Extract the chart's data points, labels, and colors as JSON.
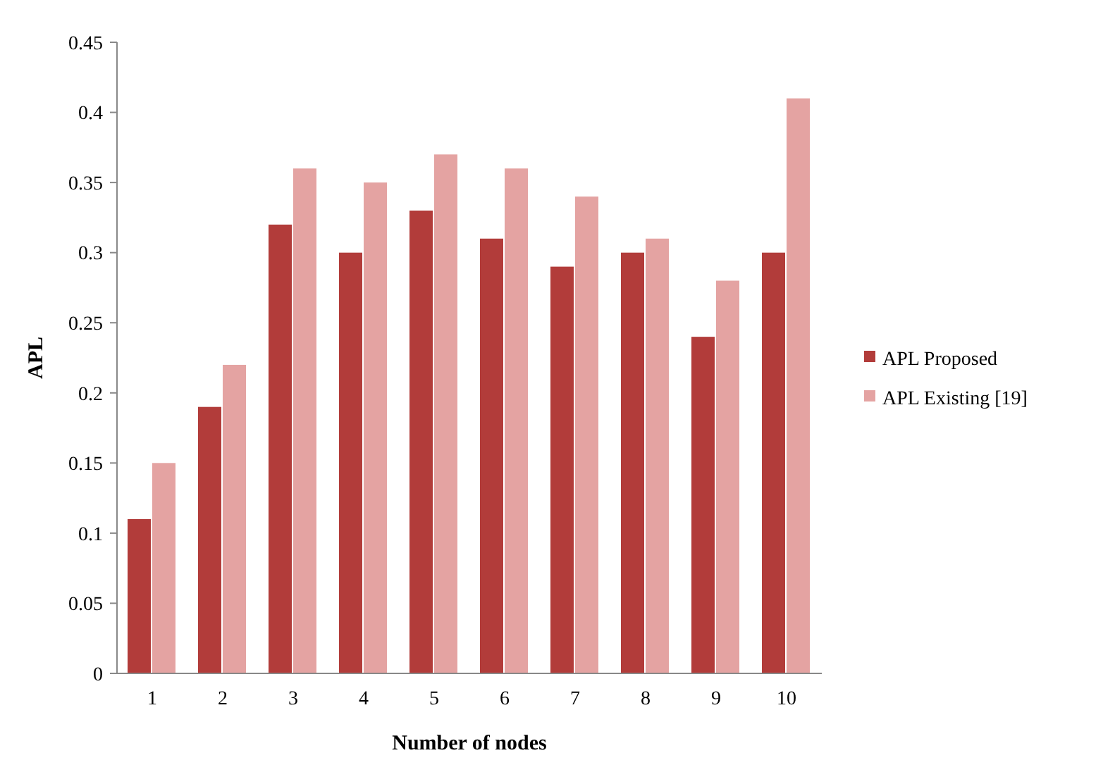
{
  "chart_data": {
    "type": "bar",
    "xlabel": "Number of nodes",
    "ylabel": "APL",
    "categories": [
      "1",
      "2",
      "3",
      "4",
      "5",
      "6",
      "7",
      "8",
      "9",
      "10"
    ],
    "series": [
      {
        "name": "APL Proposed",
        "color": "#b23c3a",
        "values": [
          0.11,
          0.19,
          0.32,
          0.3,
          0.33,
          0.31,
          0.29,
          0.3,
          0.24,
          0.3
        ]
      },
      {
        "name": "APL Existing [19]",
        "color": "#e4a3a2",
        "values": [
          0.15,
          0.22,
          0.36,
          0.35,
          0.37,
          0.36,
          0.34,
          0.31,
          0.28,
          0.41
        ]
      }
    ],
    "ylim": [
      0,
      0.45
    ],
    "yticks": [
      0,
      0.05,
      0.1,
      0.15,
      0.2,
      0.25,
      0.3,
      0.35,
      0.4,
      0.45
    ],
    "grid": false,
    "legend": "right"
  }
}
